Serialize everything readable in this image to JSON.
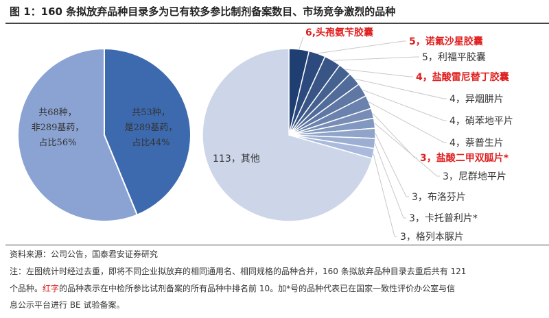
{
  "title": "图 1：160 条拟放弃品种目录多为已有较多参比制剂备案数目、市场竞争激烈的品种",
  "chart_data": [
    {
      "type": "pie",
      "start": "12 o'clock, clockwise",
      "slices": [
        {
          "value": 53,
          "label_lines": [
            "共53种，",
            "是289基药，",
            "占比44%"
          ],
          "color": "#3d6aae"
        },
        {
          "value": 68,
          "label_lines": [
            "共68种，",
            "非289基药，",
            "占比56%"
          ],
          "color": "#8aa3d2"
        }
      ]
    },
    {
      "type": "pie",
      "start": "12 o'clock, clockwise",
      "slices": [
        {
          "value": 6,
          "label": "6,头孢氨苄胶囊",
          "highlight": true
        },
        {
          "value": 5,
          "label": "5，诺氟沙星胶囊",
          "highlight": true
        },
        {
          "value": 5,
          "label": "5，利福平胶囊",
          "highlight": false
        },
        {
          "value": 4,
          "label": "4，盐酸雷尼替丁胶囊",
          "highlight": true
        },
        {
          "value": 4,
          "label": "4，异烟肼片",
          "highlight": false
        },
        {
          "value": 4,
          "label": "4，硝苯地平片",
          "highlight": false
        },
        {
          "value": 4,
          "label": "4，萘普生片",
          "highlight": false
        },
        {
          "value": 3,
          "label": "3，盐酸二甲双胍片*",
          "highlight": true
        },
        {
          "value": 3,
          "label": "3，尼群地平片",
          "highlight": false
        },
        {
          "value": 3,
          "label": "3，布洛芬片",
          "highlight": false
        },
        {
          "value": 3,
          "label": "3，卡托普利片*",
          "highlight": false
        },
        {
          "value": 3,
          "label": "3，格列本脲片",
          "highlight": false
        },
        {
          "value": 113,
          "label": "113，其他",
          "highlight": false
        }
      ],
      "colors": {
        "dark": "#1f3f73",
        "light": "#a9badd",
        "other": "#cdd5e8",
        "highlight_text": "#e02020"
      }
    }
  ],
  "footer": {
    "source": "资料来源：公司公告，国泰君安证券研究",
    "note1": "注：左图统计时经过去重，即将不同企业拟放弃的相同通用名、相同规格的品种合并，160 条拟放弃品种目录去重后共有 121",
    "note2_a": "个品种。",
    "note2_red": "红字",
    "note2_b": "的品种表示在中检所参比试剂备案的所有品种中排名前 10。加*号的品种代表已在国家一致性评价办公室与信",
    "note3": "息公示平台进行 BE 试验备案。"
  }
}
